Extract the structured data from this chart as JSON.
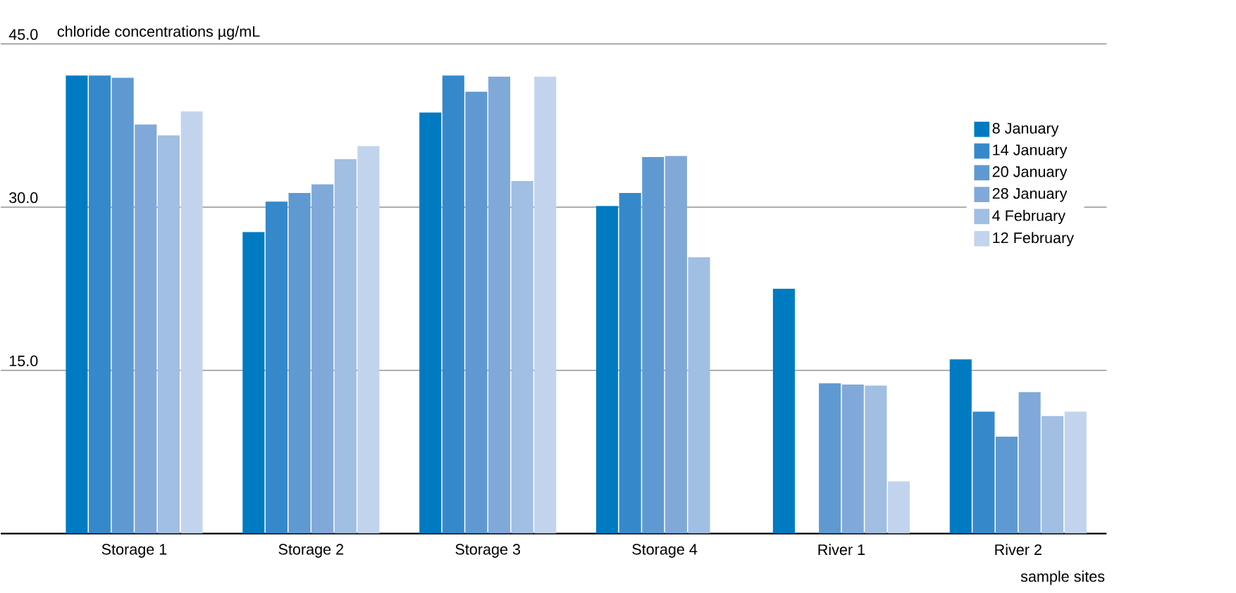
{
  "chart_data": {
    "type": "bar",
    "ylabel": "chloride concentrations µg/mL",
    "xlabel": "sample sites",
    "categories": [
      "Storage 1",
      "Storage 2",
      "Storage 3",
      "Storage 4",
      "River 1",
      "River 2"
    ],
    "series": [
      {
        "name": "8 January",
        "color": "#007bc2",
        "values": [
          42.1,
          27.7,
          38.7,
          30.1,
          22.5,
          16.0
        ]
      },
      {
        "name": "14 January",
        "color": "#3589cb",
        "values": [
          42.1,
          30.5,
          42.1,
          31.3,
          null,
          11.2
        ]
      },
      {
        "name": "20 January",
        "color": "#5e9ad1",
        "values": [
          41.9,
          31.3,
          40.6,
          34.6,
          13.8,
          8.9
        ]
      },
      {
        "name": "28 January",
        "color": "#80a9da",
        "values": [
          37.6,
          32.1,
          42.0,
          34.7,
          13.7,
          13.0
        ]
      },
      {
        "name": "4 February",
        "color": "#a1bee3",
        "values": [
          36.6,
          34.4,
          32.4,
          25.4,
          13.6,
          10.8
        ]
      },
      {
        "name": "12 February",
        "color": "#c2d4ed",
        "values": [
          38.8,
          35.6,
          42.0,
          null,
          4.8,
          11.2
        ]
      }
    ],
    "ylim": [
      0,
      45
    ],
    "yticks": [
      {
        "value": 15,
        "label": "15.0"
      },
      {
        "value": 30,
        "label": "30.0"
      },
      {
        "value": 45,
        "label": "45.0"
      }
    ],
    "grid": "y",
    "legend": "top right"
  }
}
